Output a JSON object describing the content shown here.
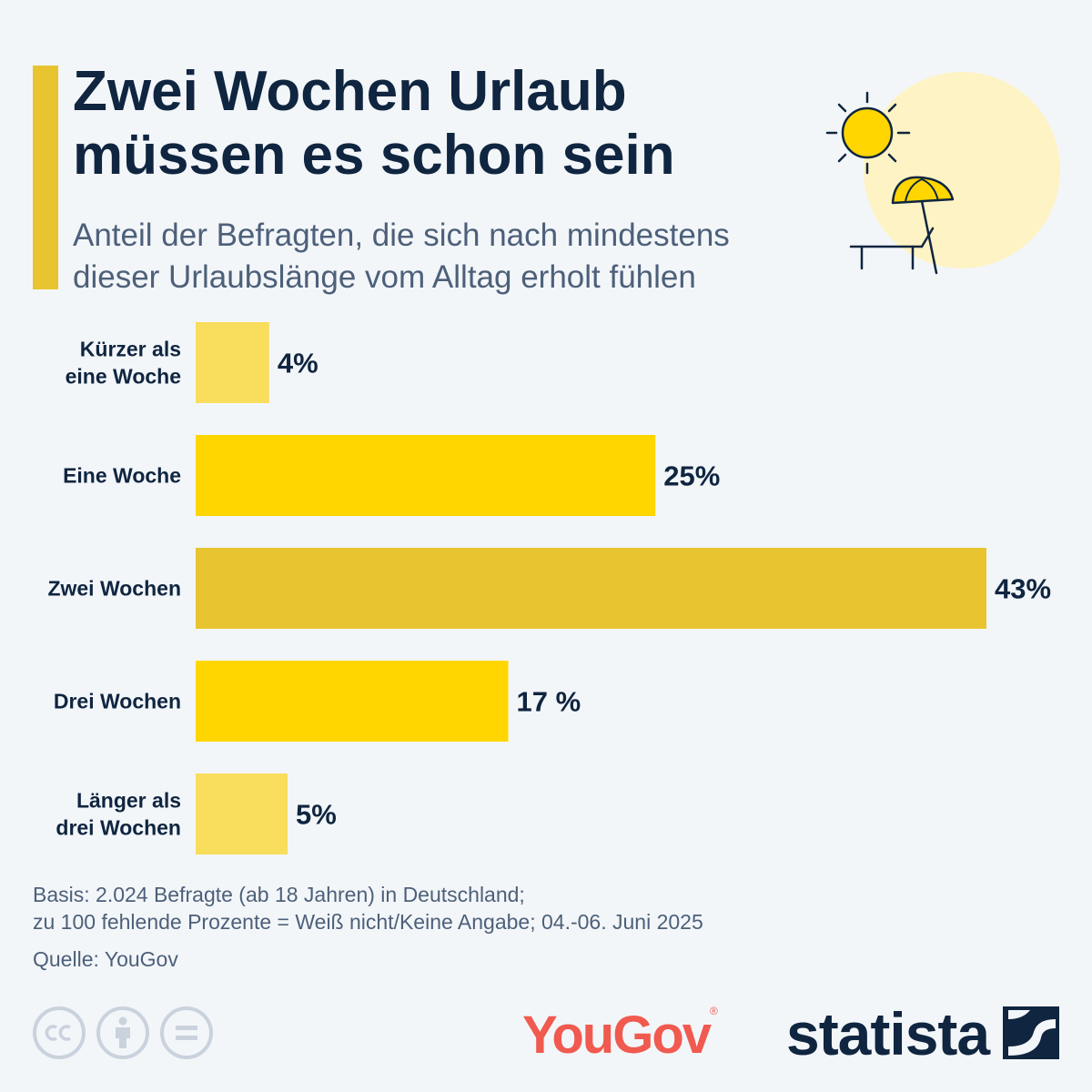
{
  "header": {
    "title_line1": "Zwei Wochen Urlaub",
    "title_line2": "müssen es schon sein",
    "subtitle_line1": "Anteil der Befragten, die sich nach mindestens",
    "subtitle_line2": "dieser Urlaubslänge vom Alltag erholt fühlen"
  },
  "chart_data": {
    "type": "bar",
    "orientation": "horizontal",
    "categories": [
      [
        "Kürzer als",
        "eine Woche"
      ],
      [
        "Eine Woche"
      ],
      [
        "Zwei Wochen"
      ],
      [
        "Drei Wochen"
      ],
      [
        "Länger als",
        "drei Wochen"
      ]
    ],
    "values": [
      4,
      25,
      43,
      17,
      5
    ],
    "value_labels": [
      "4%",
      "25%",
      "43%",
      "17 %",
      "5%"
    ],
    "colors": [
      "#f9dd5c",
      "#ffd600",
      "#e8c430",
      "#ffd600",
      "#f9dd5c"
    ],
    "xlim": [
      0,
      43
    ],
    "grid": false,
    "legend": "none"
  },
  "footer": {
    "notes_line1": "Basis: 2.024 Befragte (ab 18 Jahren) in Deutschland;",
    "notes_line2": "zu 100 fehlende Prozente = Weiß nicht/Keine Angabe; 04.-06. Juni 2025",
    "source": "Quelle: YouGov",
    "yougov_logo": "YouGov",
    "statista_logo": "statista"
  },
  "icons": [
    "sun-icon",
    "beach-umbrella-icon",
    "deck-chair-icon",
    "cc-icon",
    "attribution-icon",
    "no-derivatives-icon",
    "statista-logo-mark"
  ]
}
